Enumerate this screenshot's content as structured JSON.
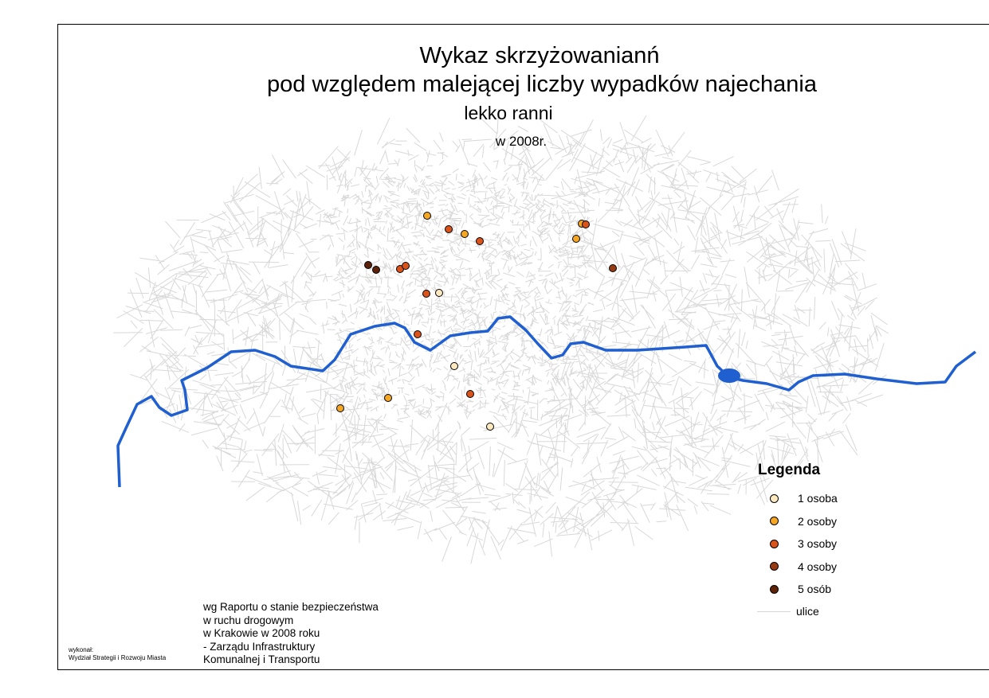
{
  "title": {
    "line1": "Wykaz skrzyżowanianń",
    "line2": "pod względem malejącej liczby wypadków najechania",
    "line3": "lekko ranni",
    "line4": "w 2008r."
  },
  "legend": {
    "title": "Legenda",
    "items": [
      {
        "label": "1 osoba",
        "color": "#fde9c0"
      },
      {
        "label": "2 osoby",
        "color": "#f5a623"
      },
      {
        "label": "3 osoby",
        "color": "#d9531a"
      },
      {
        "label": "4 osoby",
        "color": "#963a12"
      },
      {
        "label": "5 osób",
        "color": "#5e2209"
      }
    ],
    "streets_label": "ulice",
    "streets_color": "#d8d8d8"
  },
  "river_color": "#1f5fcf",
  "source": [
    "wg  Raportu o  stanie  bezpieczeństwa",
    "w  ruchu  drogowym",
    "w  Krakowie w  2008  roku",
    "- Zarządu Infrastruktury",
    "Komunalnej i Transportu"
  ],
  "author": [
    "wykonał:",
    "Wydział Strategii i Rozwoju Miasta"
  ],
  "intersections": [
    {
      "persons": 2
    },
    {
      "persons": 3
    },
    {
      "persons": 2
    },
    {
      "persons": 3
    },
    {
      "persons": 5
    },
    {
      "persons": 5
    },
    {
      "persons": 3
    },
    {
      "persons": 3
    },
    {
      "persons": 3
    },
    {
      "persons": 1
    },
    {
      "persons": 3
    },
    {
      "persons": 2
    },
    {
      "persons": 3
    },
    {
      "persons": 2
    },
    {
      "persons": 4
    },
    {
      "persons": 1
    },
    {
      "persons": 3
    },
    {
      "persons": 2
    },
    {
      "persons": 2
    },
    {
      "persons": 1
    }
  ]
}
